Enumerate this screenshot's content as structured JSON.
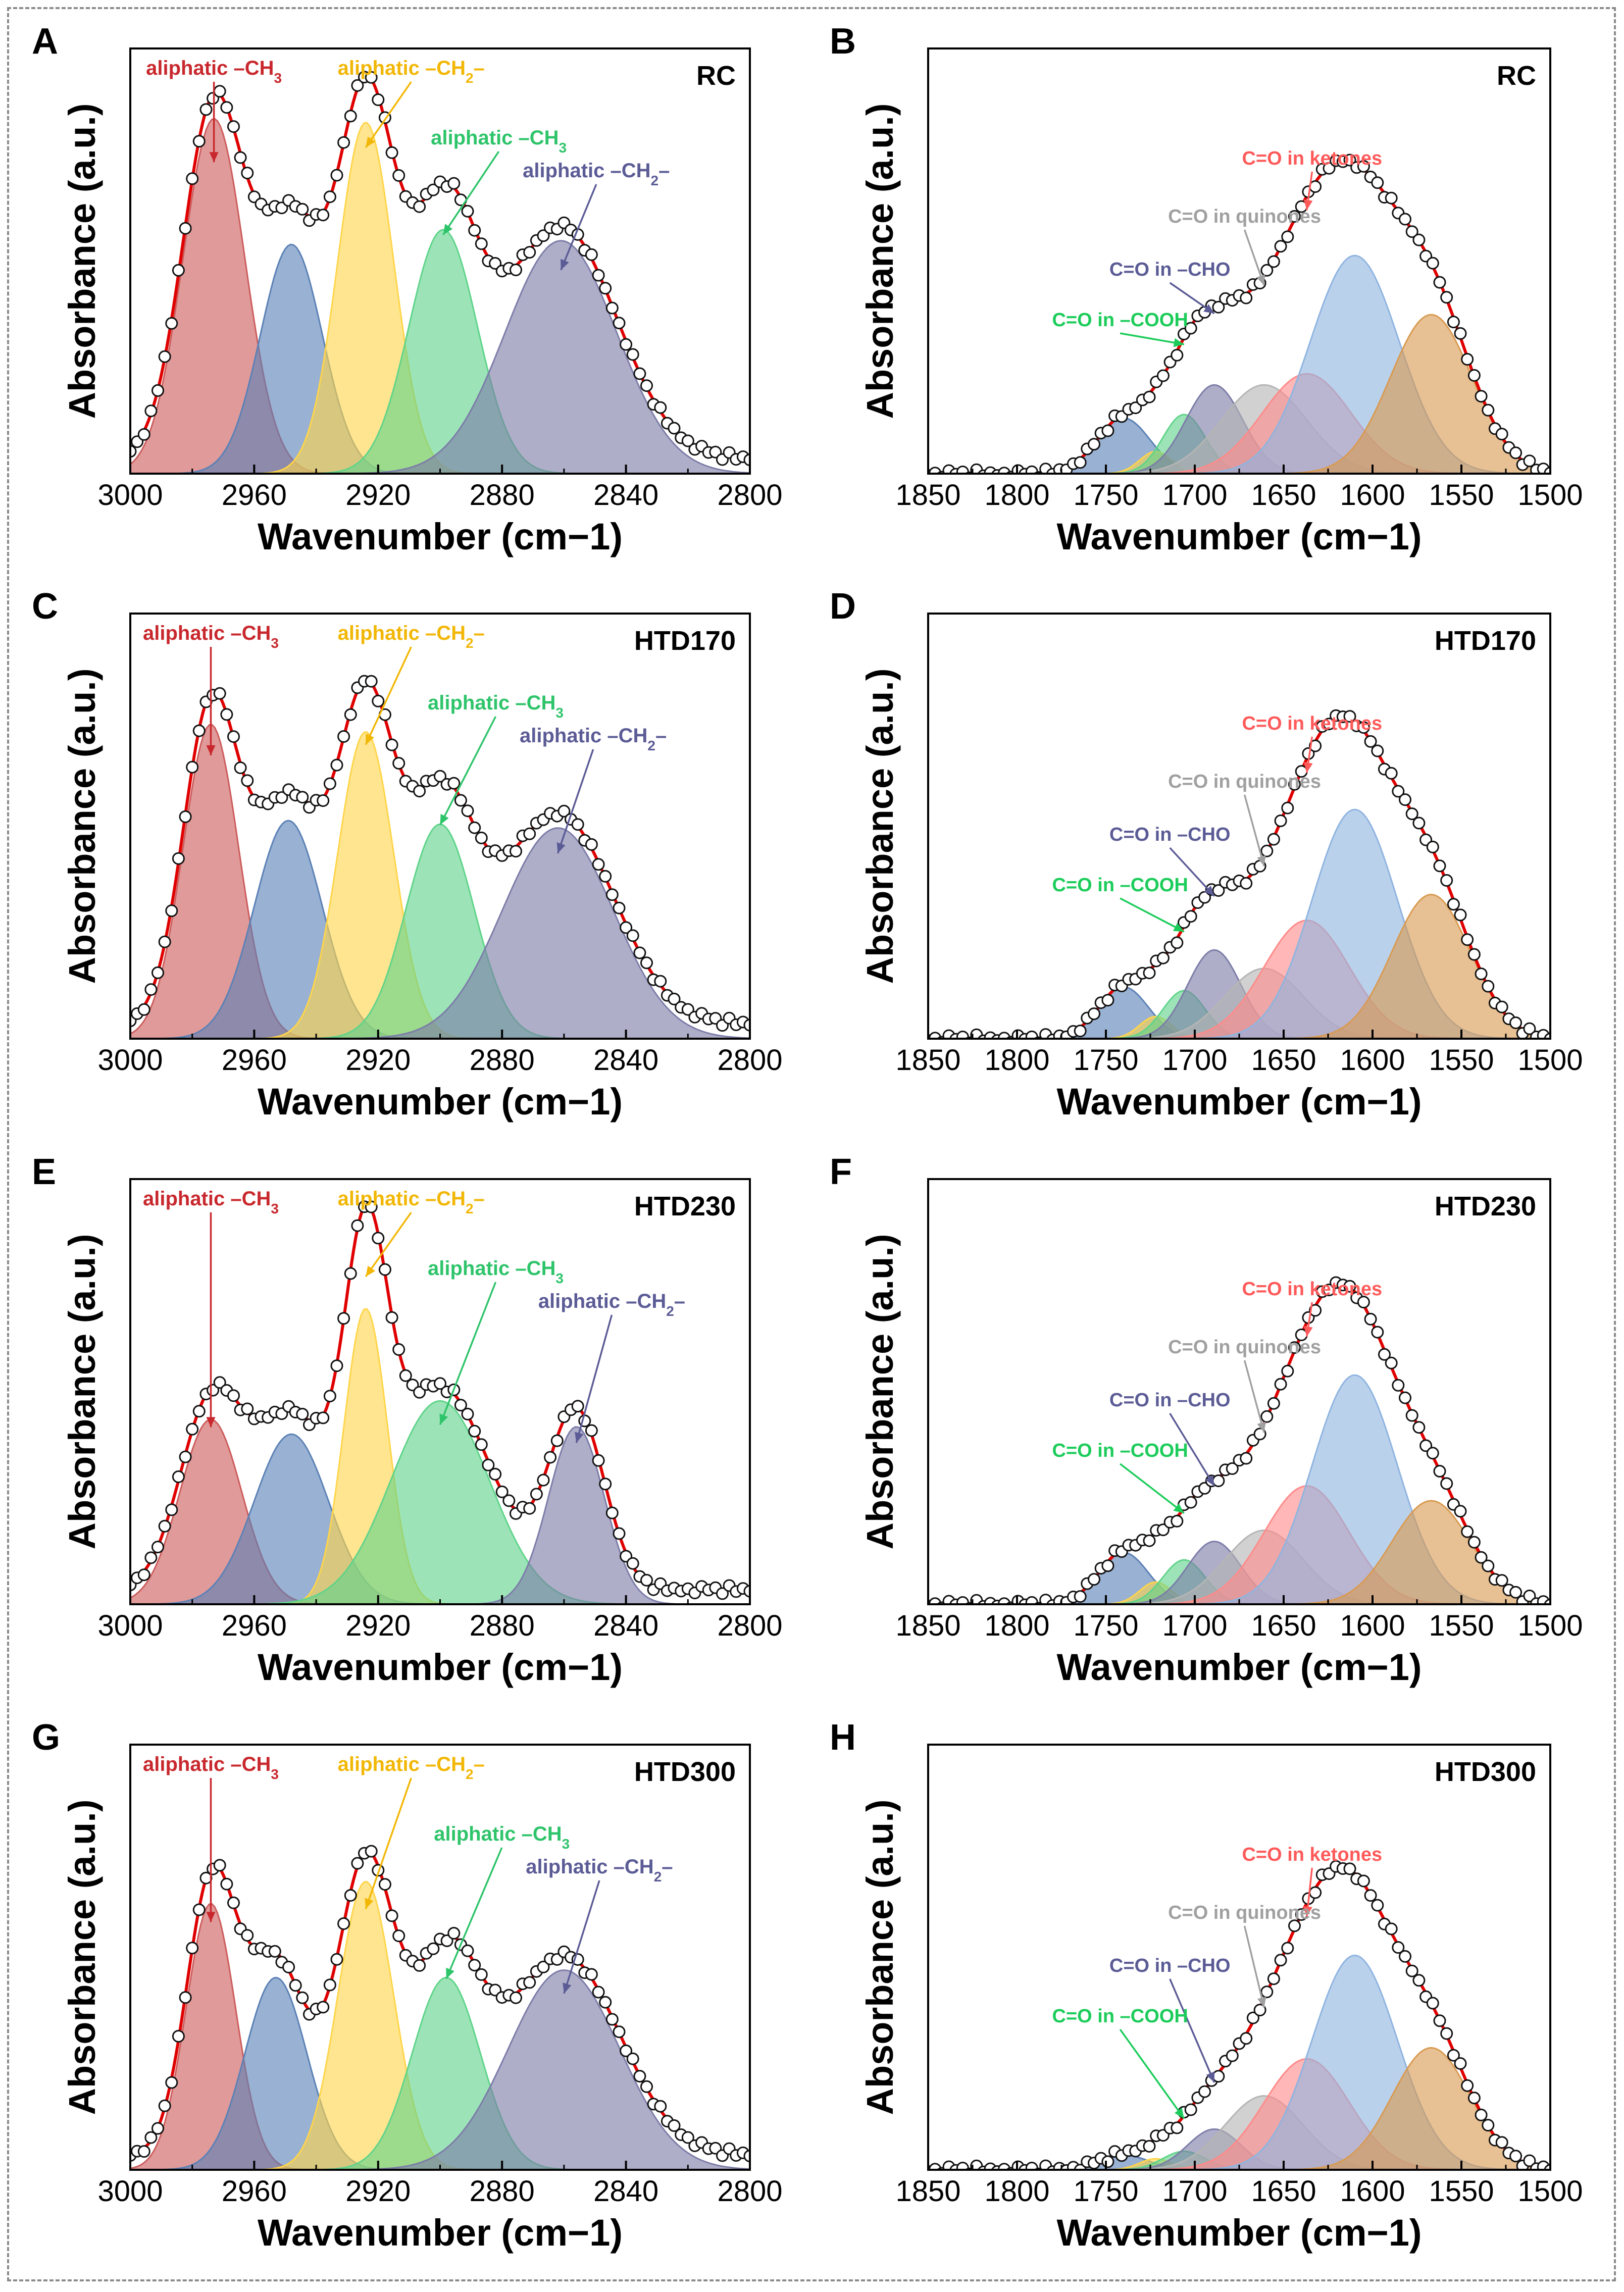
{
  "figure": {
    "colors": {
      "ch3_red": "#cd5c5c",
      "blue": "#5b81b6",
      "yellow": "#ffd54a",
      "green": "#5fd48a",
      "purple": "#7c7ca8",
      "gray": "#b5b5b5",
      "pink": "#ff8a8a",
      "light_blue": "#8fb4e0",
      "orange": "#d99a50",
      "fit_line": "#e00000",
      "label_red": "#c8282d",
      "label_yellow": "#f2b705",
      "label_green": "#2ec46a",
      "label_purple": "#5b5b96",
      "label_gray": "#a0a0a0",
      "label_pink": "#ff5a5a",
      "label_cooh": "#1ccc5a"
    }
  },
  "chart_data": [
    {
      "panel": "A",
      "sample": "RC",
      "type": "area",
      "xlabel": "Wavenumber (cm−1)",
      "ylabel": "Absorbance (a.u.)",
      "xlim": [
        3000,
        2800
      ],
      "ylim": [
        0,
        1.15
      ],
      "xticks": [
        3000,
        2960,
        2920,
        2880,
        2840,
        2800
      ],
      "baseline": 0.04,
      "series": [
        {
          "name": "aliphatic –CH3",
          "center": 2973,
          "height": 0.96,
          "width": 10,
          "color": "#cd5c5c"
        },
        {
          "name": "",
          "center": 2948,
          "height": 0.62,
          "width": 10,
          "color": "#5b81b6"
        },
        {
          "name": "aliphatic –CH2–",
          "center": 2924,
          "height": 0.95,
          "width": 9,
          "color": "#ffd54a"
        },
        {
          "name": "aliphatic –CH3",
          "center": 2899,
          "height": 0.66,
          "width": 11,
          "color": "#5fd48a"
        },
        {
          "name": "aliphatic –CH2–",
          "center": 2861,
          "height": 0.63,
          "width": 18,
          "color": "#7c7ca8"
        }
      ],
      "annotations": [
        {
          "text": "aliphatic –CH",
          "sub": "3",
          "target": 2973,
          "color": "#c8282d"
        },
        {
          "text": "aliphatic –CH",
          "sub": "2",
          "tail": "–",
          "target": 2924,
          "color": "#f2b705"
        },
        {
          "text": "aliphatic –CH",
          "sub": "3",
          "target": 2899,
          "color": "#2ec46a"
        },
        {
          "text": "aliphatic –CH",
          "sub": "2",
          "tail": "–",
          "target": 2861,
          "color": "#5b5b96"
        }
      ]
    },
    {
      "panel": "B",
      "sample": "RC",
      "type": "area",
      "xlabel": "Wavenumber (cm−1)",
      "ylabel": "Absorbance (a.u.)",
      "xlim": [
        1850,
        1500
      ],
      "ylim": [
        0,
        1.15
      ],
      "xticks": [
        1850,
        1800,
        1750,
        1700,
        1650,
        1600,
        1550,
        1500
      ],
      "baseline": 0.0,
      "series": [
        {
          "name": "",
          "center": 1740,
          "height": 0.15,
          "width": 15,
          "color": "#5b81b6"
        },
        {
          "name": "",
          "center": 1722,
          "height": 0.06,
          "width": 9,
          "color": "#ffd54a"
        },
        {
          "name": "C=O in –COOH",
          "center": 1706,
          "height": 0.16,
          "width": 12,
          "color": "#5fd48a"
        },
        {
          "name": "C=O in –CHO",
          "center": 1689,
          "height": 0.24,
          "width": 16,
          "color": "#7c7ca8"
        },
        {
          "name": "C=O in quinones",
          "center": 1661,
          "height": 0.24,
          "width": 24,
          "color": "#b5b5b5"
        },
        {
          "name": "C=O in ketones",
          "center": 1637,
          "height": 0.27,
          "width": 25,
          "color": "#ff8a8a"
        },
        {
          "name": "",
          "center": 1610,
          "height": 0.59,
          "width": 25,
          "color": "#8fb4e0"
        },
        {
          "name": "",
          "center": 1567,
          "height": 0.43,
          "width": 23,
          "color": "#d99a50"
        }
      ],
      "annotations": [
        {
          "text": "C=O in ketones",
          "target": 1637,
          "color": "#ff5a5a"
        },
        {
          "text": "C=O in quinones",
          "target": 1661,
          "color": "#a0a0a0"
        },
        {
          "text": "C=O in –CHO",
          "target": 1689,
          "color": "#5b5b96"
        },
        {
          "text": "C=O in –COOH",
          "target": 1706,
          "color": "#1ccc5a"
        }
      ]
    },
    {
      "panel": "C",
      "sample": "HTD170",
      "type": "area",
      "xlabel": "Wavenumber (cm−1)",
      "ylabel": "Absorbance (a.u.)",
      "xlim": [
        3000,
        2800
      ],
      "ylim": [
        0,
        1.15
      ],
      "xticks": [
        3000,
        2960,
        2920,
        2880,
        2840,
        2800
      ],
      "baseline": 0.04,
      "series": [
        {
          "name": "aliphatic –CH3",
          "center": 2974,
          "height": 0.85,
          "width": 9,
          "color": "#cd5c5c"
        },
        {
          "name": "",
          "center": 2949,
          "height": 0.59,
          "width": 11,
          "color": "#5b81b6"
        },
        {
          "name": "aliphatic –CH2–",
          "center": 2924,
          "height": 0.83,
          "width": 9,
          "color": "#ffd54a"
        },
        {
          "name": "aliphatic –CH3",
          "center": 2900,
          "height": 0.58,
          "width": 11,
          "color": "#5fd48a"
        },
        {
          "name": "aliphatic –CH2–",
          "center": 2862,
          "height": 0.57,
          "width": 18,
          "color": "#7c7ca8"
        }
      ],
      "annotations": [
        {
          "text": "aliphatic –CH",
          "sub": "3",
          "target": 2974,
          "color": "#c8282d"
        },
        {
          "text": "aliphatic –CH",
          "sub": "2",
          "tail": "–",
          "target": 2924,
          "color": "#f2b705"
        },
        {
          "text": "aliphatic –CH",
          "sub": "3",
          "target": 2900,
          "color": "#2ec46a"
        },
        {
          "text": "aliphatic –CH",
          "sub": "2",
          "tail": "–",
          "target": 2862,
          "color": "#5b5b96"
        }
      ]
    },
    {
      "panel": "D",
      "sample": "HTD170",
      "type": "area",
      "xlabel": "Wavenumber (cm−1)",
      "ylabel": "Absorbance (a.u.)",
      "xlim": [
        1850,
        1500
      ],
      "ylim": [
        0,
        1.15
      ],
      "xticks": [
        1850,
        1800,
        1750,
        1700,
        1650,
        1600,
        1550,
        1500
      ],
      "baseline": 0.0,
      "series": [
        {
          "name": "",
          "center": 1740,
          "height": 0.14,
          "width": 14,
          "color": "#5b81b6"
        },
        {
          "name": "",
          "center": 1722,
          "height": 0.06,
          "width": 9,
          "color": "#ffd54a"
        },
        {
          "name": "C=O in –COOH",
          "center": 1706,
          "height": 0.13,
          "width": 12,
          "color": "#5fd48a"
        },
        {
          "name": "C=O in –CHO",
          "center": 1689,
          "height": 0.24,
          "width": 15,
          "color": "#7c7ca8"
        },
        {
          "name": "C=O in quinones",
          "center": 1661,
          "height": 0.19,
          "width": 22,
          "color": "#b5b5b5"
        },
        {
          "name": "C=O in ketones",
          "center": 1637,
          "height": 0.32,
          "width": 24,
          "color": "#ff8a8a"
        },
        {
          "name": "",
          "center": 1610,
          "height": 0.62,
          "width": 24,
          "color": "#8fb4e0"
        },
        {
          "name": "",
          "center": 1567,
          "height": 0.39,
          "width": 22,
          "color": "#d99a50"
        }
      ],
      "annotations": [
        {
          "text": "C=O in ketones",
          "target": 1637,
          "color": "#ff5a5a"
        },
        {
          "text": "C=O in quinones",
          "target": 1661,
          "color": "#a0a0a0"
        },
        {
          "text": "C=O in –CHO",
          "target": 1689,
          "color": "#5b5b96"
        },
        {
          "text": "C=O in –COOH",
          "target": 1706,
          "color": "#1ccc5a"
        }
      ]
    },
    {
      "panel": "E",
      "sample": "HTD230",
      "type": "area",
      "xlabel": "Wavenumber (cm−1)",
      "ylabel": "Absorbance (a.u.)",
      "xlim": [
        3000,
        2800
      ],
      "ylim": [
        0,
        1.15
      ],
      "xticks": [
        3000,
        2960,
        2920,
        2880,
        2840,
        2800
      ],
      "baseline": 0.04,
      "series": [
        {
          "name": "aliphatic –CH3",
          "center": 2974,
          "height": 0.5,
          "width": 10,
          "color": "#cd5c5c"
        },
        {
          "name": "",
          "center": 2948,
          "height": 0.46,
          "width": 12,
          "color": "#5b81b6"
        },
        {
          "name": "aliphatic –CH2–",
          "center": 2924,
          "height": 0.8,
          "width": 7,
          "color": "#ffd54a"
        },
        {
          "name": "aliphatic –CH3",
          "center": 2900,
          "height": 0.55,
          "width": 16,
          "color": "#5fd48a"
        },
        {
          "name": "aliphatic –CH2–",
          "center": 2856,
          "height": 0.48,
          "width": 9,
          "color": "#7c7ca8"
        }
      ],
      "annotations": [
        {
          "text": "aliphatic –CH",
          "sub": "3",
          "target": 2974,
          "color": "#c8282d"
        },
        {
          "text": "aliphatic –CH",
          "sub": "2",
          "tail": "–",
          "target": 2924,
          "color": "#f2b705"
        },
        {
          "text": "aliphatic –CH",
          "sub": "3",
          "target": 2900,
          "color": "#2ec46a"
        },
        {
          "text": "aliphatic –CH",
          "sub": "2",
          "tail": "–",
          "target": 2856,
          "color": "#5b5b96"
        }
      ]
    },
    {
      "panel": "F",
      "sample": "HTD230",
      "type": "area",
      "xlabel": "Wavenumber (cm−1)",
      "ylabel": "Absorbance (a.u.)",
      "xlim": [
        1850,
        1500
      ],
      "ylim": [
        0,
        1.15
      ],
      "xticks": [
        1850,
        1800,
        1750,
        1700,
        1650,
        1600,
        1550,
        1500
      ],
      "baseline": 0.0,
      "series": [
        {
          "name": "",
          "center": 1740,
          "height": 0.14,
          "width": 14,
          "color": "#5b81b6"
        },
        {
          "name": "",
          "center": 1722,
          "height": 0.06,
          "width": 9,
          "color": "#ffd54a"
        },
        {
          "name": "C=O in –COOH",
          "center": 1706,
          "height": 0.12,
          "width": 12,
          "color": "#5fd48a"
        },
        {
          "name": "C=O in –CHO",
          "center": 1689,
          "height": 0.17,
          "width": 15,
          "color": "#7c7ca8"
        },
        {
          "name": "C=O in quinones",
          "center": 1661,
          "height": 0.2,
          "width": 22,
          "color": "#b5b5b5"
        },
        {
          "name": "C=O in ketones",
          "center": 1637,
          "height": 0.32,
          "width": 24,
          "color": "#ff8a8a"
        },
        {
          "name": "",
          "center": 1610,
          "height": 0.62,
          "width": 24,
          "color": "#8fb4e0"
        },
        {
          "name": "",
          "center": 1567,
          "height": 0.28,
          "width": 22,
          "color": "#d99a50"
        }
      ],
      "annotations": [
        {
          "text": "C=O in ketones",
          "target": 1637,
          "color": "#ff5a5a"
        },
        {
          "text": "C=O in quinones",
          "target": 1661,
          "color": "#a0a0a0"
        },
        {
          "text": "C=O in –CHO",
          "target": 1689,
          "color": "#5b5b96"
        },
        {
          "text": "C=O in –COOH",
          "target": 1706,
          "color": "#1ccc5a"
        }
      ]
    },
    {
      "panel": "G",
      "sample": "HTD300",
      "type": "area",
      "xlabel": "Wavenumber (cm−1)",
      "ylabel": "Absorbance (a.u.)",
      "xlim": [
        3000,
        2800
      ],
      "ylim": [
        0,
        1.15
      ],
      "xticks": [
        3000,
        2960,
        2920,
        2880,
        2840,
        2800
      ],
      "baseline": 0.04,
      "series": [
        {
          "name": "aliphatic –CH3",
          "center": 2974,
          "height": 0.72,
          "width": 8,
          "color": "#cd5c5c"
        },
        {
          "name": "",
          "center": 2953,
          "height": 0.52,
          "width": 10,
          "color": "#5b81b6"
        },
        {
          "name": "aliphatic –CH2–",
          "center": 2924,
          "height": 0.78,
          "width": 9,
          "color": "#ffd54a"
        },
        {
          "name": "aliphatic –CH3",
          "center": 2898,
          "height": 0.52,
          "width": 11,
          "color": "#5fd48a"
        },
        {
          "name": "aliphatic –CH2–",
          "center": 2860,
          "height": 0.54,
          "width": 18,
          "color": "#7c7ca8"
        }
      ],
      "annotations": [
        {
          "text": "aliphatic –CH",
          "sub": "3",
          "target": 2974,
          "color": "#c8282d"
        },
        {
          "text": "aliphatic –CH",
          "sub": "2",
          "tail": "–",
          "target": 2924,
          "color": "#f2b705"
        },
        {
          "text": "aliphatic –CH",
          "sub": "3",
          "target": 2898,
          "color": "#2ec46a"
        },
        {
          "text": "aliphatic –CH",
          "sub": "2",
          "tail": "–",
          "target": 2860,
          "color": "#5b5b96"
        }
      ]
    },
    {
      "panel": "H",
      "sample": "HTD300",
      "type": "area",
      "xlabel": "Wavenumber (cm−1)",
      "ylabel": "Absorbance (a.u.)",
      "xlim": [
        1850,
        1500
      ],
      "ylim": [
        0,
        1.15
      ],
      "xticks": [
        1850,
        1800,
        1750,
        1700,
        1650,
        1600,
        1550,
        1500
      ],
      "baseline": 0.0,
      "series": [
        {
          "name": "",
          "center": 1740,
          "height": 0.04,
          "width": 14,
          "color": "#5b81b6"
        },
        {
          "name": "",
          "center": 1722,
          "height": 0.03,
          "width": 9,
          "color": "#ffd54a"
        },
        {
          "name": "C=O in –COOH",
          "center": 1706,
          "height": 0.05,
          "width": 12,
          "color": "#5fd48a"
        },
        {
          "name": "C=O in –CHO",
          "center": 1689,
          "height": 0.11,
          "width": 15,
          "color": "#7c7ca8"
        },
        {
          "name": "C=O in quinones",
          "center": 1661,
          "height": 0.2,
          "width": 22,
          "color": "#b5b5b5"
        },
        {
          "name": "C=O in ketones",
          "center": 1637,
          "height": 0.3,
          "width": 24,
          "color": "#ff8a8a"
        },
        {
          "name": "",
          "center": 1610,
          "height": 0.58,
          "width": 24,
          "color": "#8fb4e0"
        },
        {
          "name": "",
          "center": 1567,
          "height": 0.33,
          "width": 22,
          "color": "#d99a50"
        }
      ],
      "annotations": [
        {
          "text": "C=O in ketones",
          "target": 1637,
          "color": "#ff5a5a"
        },
        {
          "text": "C=O in quinones",
          "target": 1661,
          "color": "#a0a0a0"
        },
        {
          "text": "C=O in –CHO",
          "target": 1689,
          "color": "#5b5b96"
        },
        {
          "text": "C=O in –COOH",
          "target": 1706,
          "color": "#1ccc5a"
        }
      ]
    }
  ]
}
